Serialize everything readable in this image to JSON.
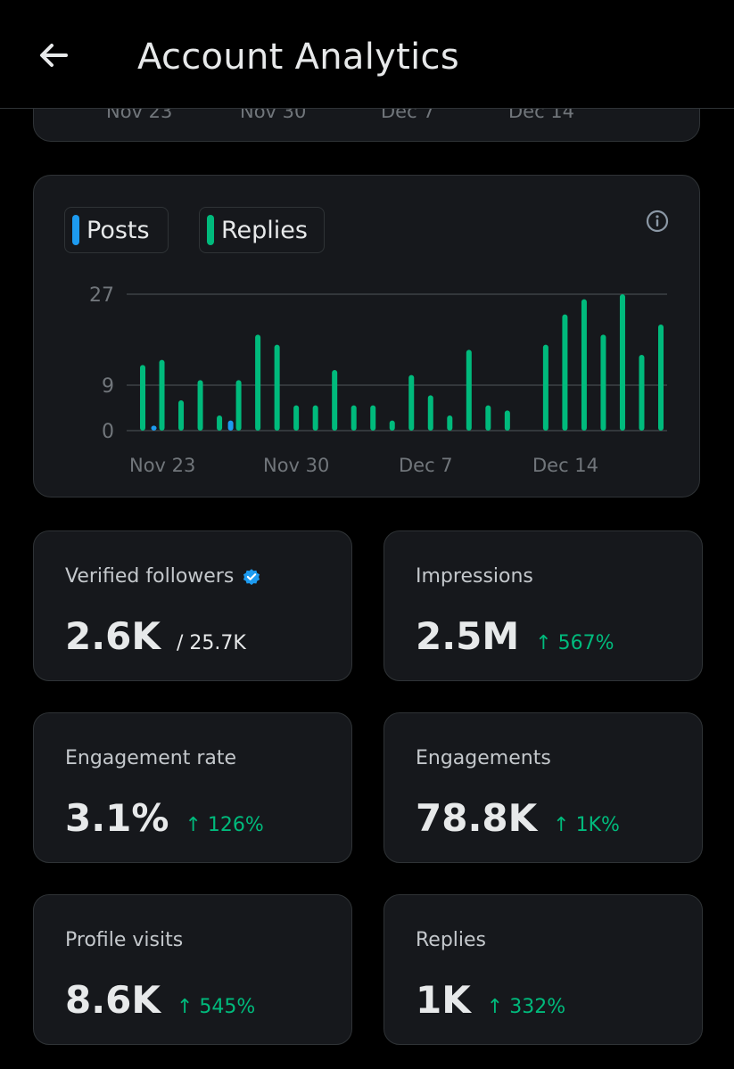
{
  "header": {
    "title": "Account Analytics"
  },
  "previous_chart": {
    "ticks": [
      "Nov 23",
      "Nov 30",
      "Dec 7",
      "Dec 14"
    ]
  },
  "chart_data": {
    "type": "bar",
    "legend": [
      "Posts",
      "Replies"
    ],
    "y_ticks": [
      "27",
      "9",
      "0"
    ],
    "x_ticks": [
      "Nov 23",
      "Nov 30",
      "Dec 7",
      "Dec 14"
    ],
    "ylim": [
      0,
      27
    ],
    "grid": true,
    "colors": {
      "Posts": "#1d9bf0",
      "Replies": "#00ba7c"
    },
    "series": [
      {
        "name": "Replies",
        "values": [
          13,
          14,
          6,
          10,
          3,
          10,
          19,
          17,
          5,
          5,
          12,
          5,
          5,
          2,
          11,
          7,
          3,
          16,
          5,
          4,
          0,
          17,
          23,
          26,
          19,
          27,
          15,
          21
        ]
      },
      {
        "name": "Posts",
        "values": [
          0,
          1,
          0,
          0,
          0,
          2,
          0,
          0,
          0,
          0,
          0,
          0,
          0,
          0,
          0,
          0,
          0,
          0,
          0,
          0,
          0,
          0,
          0,
          0,
          0,
          0,
          0,
          0
        ]
      }
    ]
  },
  "stats": [
    {
      "label": "Verified followers",
      "value": "2.6K",
      "total": "/ 25.7K",
      "change": ""
    },
    {
      "label": "Impressions",
      "value": "2.5M",
      "total": "",
      "change": "↑ 567%"
    },
    {
      "label": "Engagement rate",
      "value": "3.1%",
      "total": "",
      "change": "↑ 126%"
    },
    {
      "label": "Engagements",
      "value": "78.8K",
      "total": "",
      "change": "↑ 1K%"
    },
    {
      "label": "Profile visits",
      "value": "8.6K",
      "total": "",
      "change": "↑ 545%"
    },
    {
      "label": "Replies",
      "value": "1K",
      "total": "",
      "change": "↑ 332%"
    }
  ],
  "icons": {
    "back": "arrow-left-icon",
    "info": "info-icon",
    "verified": "verified-badge-icon"
  }
}
